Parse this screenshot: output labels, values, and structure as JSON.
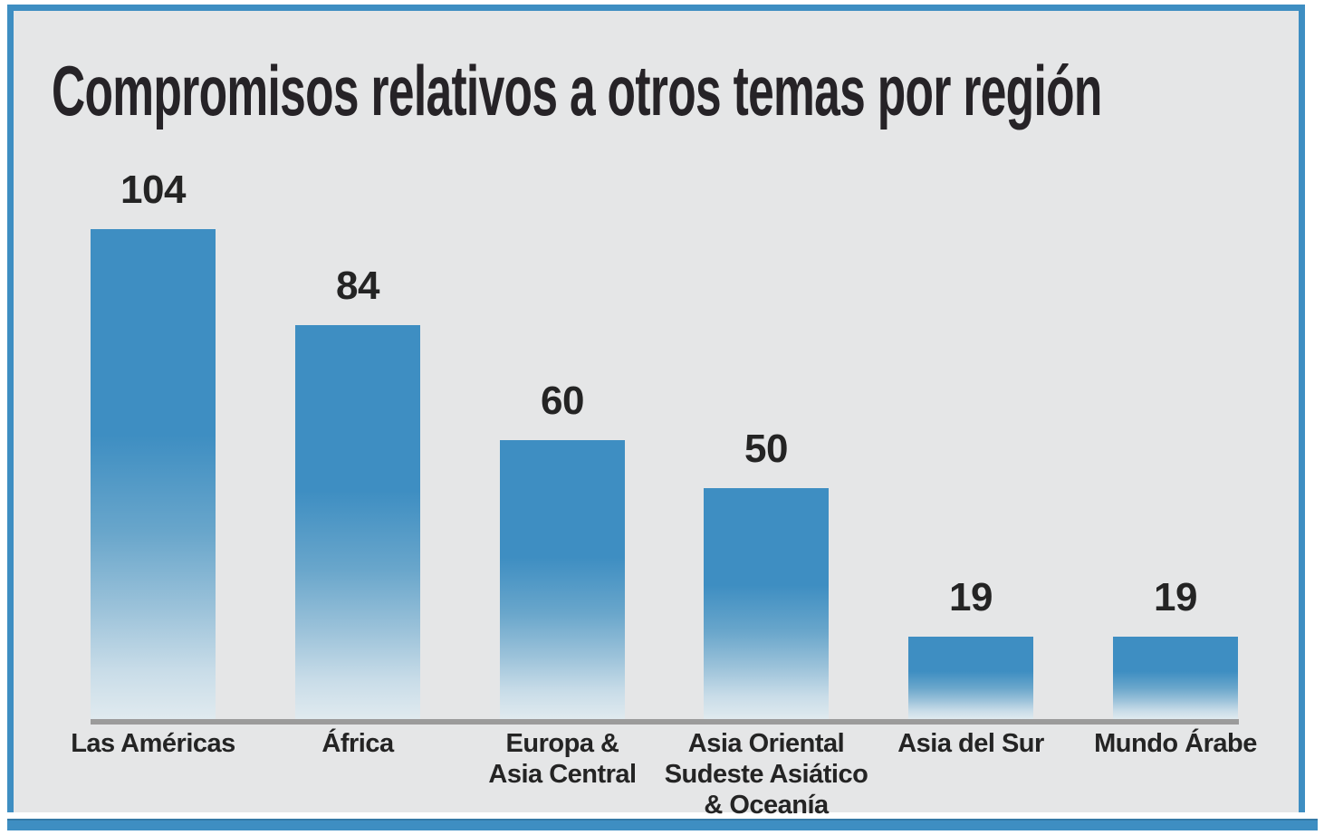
{
  "frame": {
    "background_color": "#E5E6E7",
    "border_color": "#3E8EC2"
  },
  "chart_data": {
    "type": "bar",
    "title": "Compromisos relativos a otros temas por región",
    "categories": [
      [
        "Las Américas"
      ],
      [
        "África"
      ],
      [
        "Europa &",
        "Asia Central"
      ],
      [
        "Asia Oriental",
        "Sudeste Asiático",
        "& Oceanía"
      ],
      [
        "Asia del Sur"
      ],
      [
        "Mundo Árabe"
      ]
    ],
    "values": [
      104,
      84,
      60,
      50,
      19,
      19
    ],
    "value_labels": [
      "104",
      "84",
      "60",
      "50",
      "19",
      "19"
    ],
    "xlabel": "",
    "ylabel": "",
    "ylim": [
      0,
      110
    ],
    "grid": false,
    "legend": "none",
    "bar_color": "#3E8EC2",
    "bar_fade_bottom": "#E0EAEF",
    "axis_line_color": "#9B9B9B",
    "text_color": "#242424",
    "value_labels_position": "above-bars"
  }
}
